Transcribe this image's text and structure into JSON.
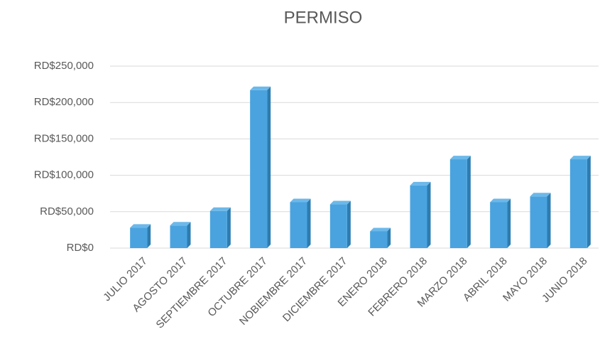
{
  "chart_data": {
    "type": "bar",
    "title": "PERMISO",
    "categories": [
      "JULIO 2017",
      "AGOSTO 2017",
      "SEPTIEMBRE 2017",
      "OCTUBRE 2017",
      "NOBIEMBRE 2017",
      "DICIEMBRE 2017",
      "ENERO 2018",
      "FEBRERO 2018",
      "MARZO 2018",
      "ABRIL 2018",
      "MAYO 2018",
      "JUNIO 2018"
    ],
    "values": [
      28000,
      31000,
      51000,
      217000,
      63000,
      60000,
      23000,
      86000,
      122000,
      63000,
      71000,
      122000
    ],
    "color": "#4aa3df",
    "ylim": [
      0,
      250000
    ],
    "yticks": [
      {
        "value": 0,
        "label": "RD$0"
      },
      {
        "value": 50000,
        "label": "RD$50,000"
      },
      {
        "value": 100000,
        "label": "RD$100,000"
      },
      {
        "value": 150000,
        "label": "RD$150,000"
      },
      {
        "value": 200000,
        "label": "RD$200,000"
      },
      {
        "value": 250000,
        "label": "RD$250,000"
      }
    ],
    "grid": true
  }
}
